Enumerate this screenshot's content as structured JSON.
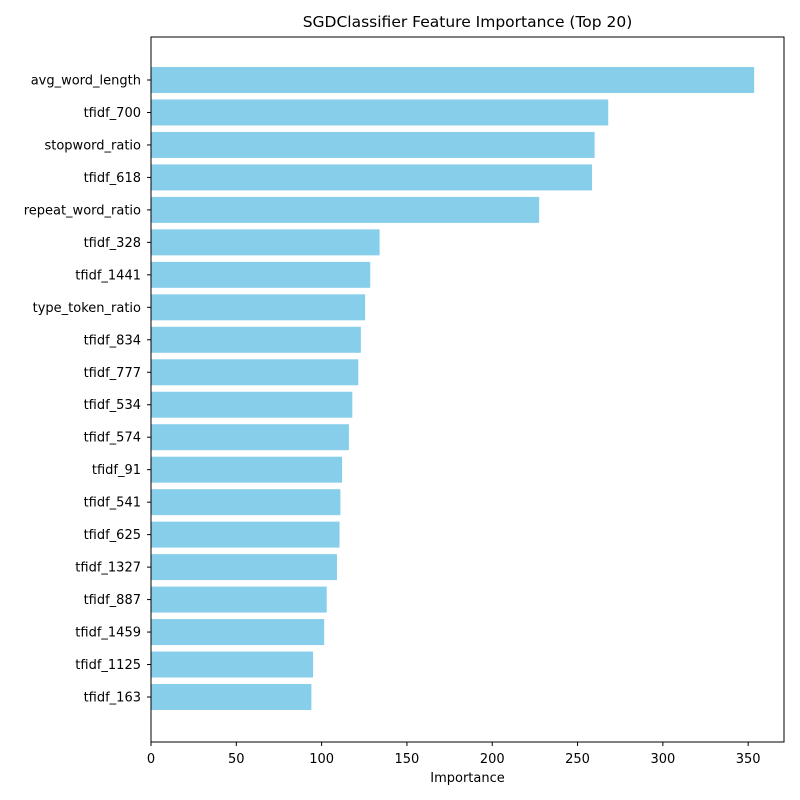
{
  "chart_data": {
    "type": "bar",
    "orientation": "horizontal",
    "title": "SGDClassifier Feature Importance (Top 20)",
    "xlabel": "Importance",
    "ylabel": "",
    "xlim": [
      0,
      371
    ],
    "xticks": [
      0,
      50,
      100,
      150,
      200,
      250,
      300,
      350
    ],
    "grid": false,
    "bar_color": "#87CEEB",
    "categories": [
      "avg_word_length",
      "tfidf_700",
      "stopword_ratio",
      "tfidf_618",
      "repeat_word_ratio",
      "tfidf_328",
      "tfidf_1441",
      "type_token_ratio",
      "tfidf_834",
      "tfidf_777",
      "tfidf_534",
      "tfidf_574",
      "tfidf_91",
      "tfidf_541",
      "tfidf_625",
      "tfidf_1327",
      "tfidf_887",
      "tfidf_1459",
      "tfidf_1125",
      "tfidf_163"
    ],
    "values": [
      353.5,
      268,
      260,
      258.5,
      227.5,
      134,
      128.5,
      125.5,
      123,
      121.5,
      118,
      116,
      112,
      111,
      110.5,
      109,
      103,
      101.5,
      95,
      94
    ]
  }
}
